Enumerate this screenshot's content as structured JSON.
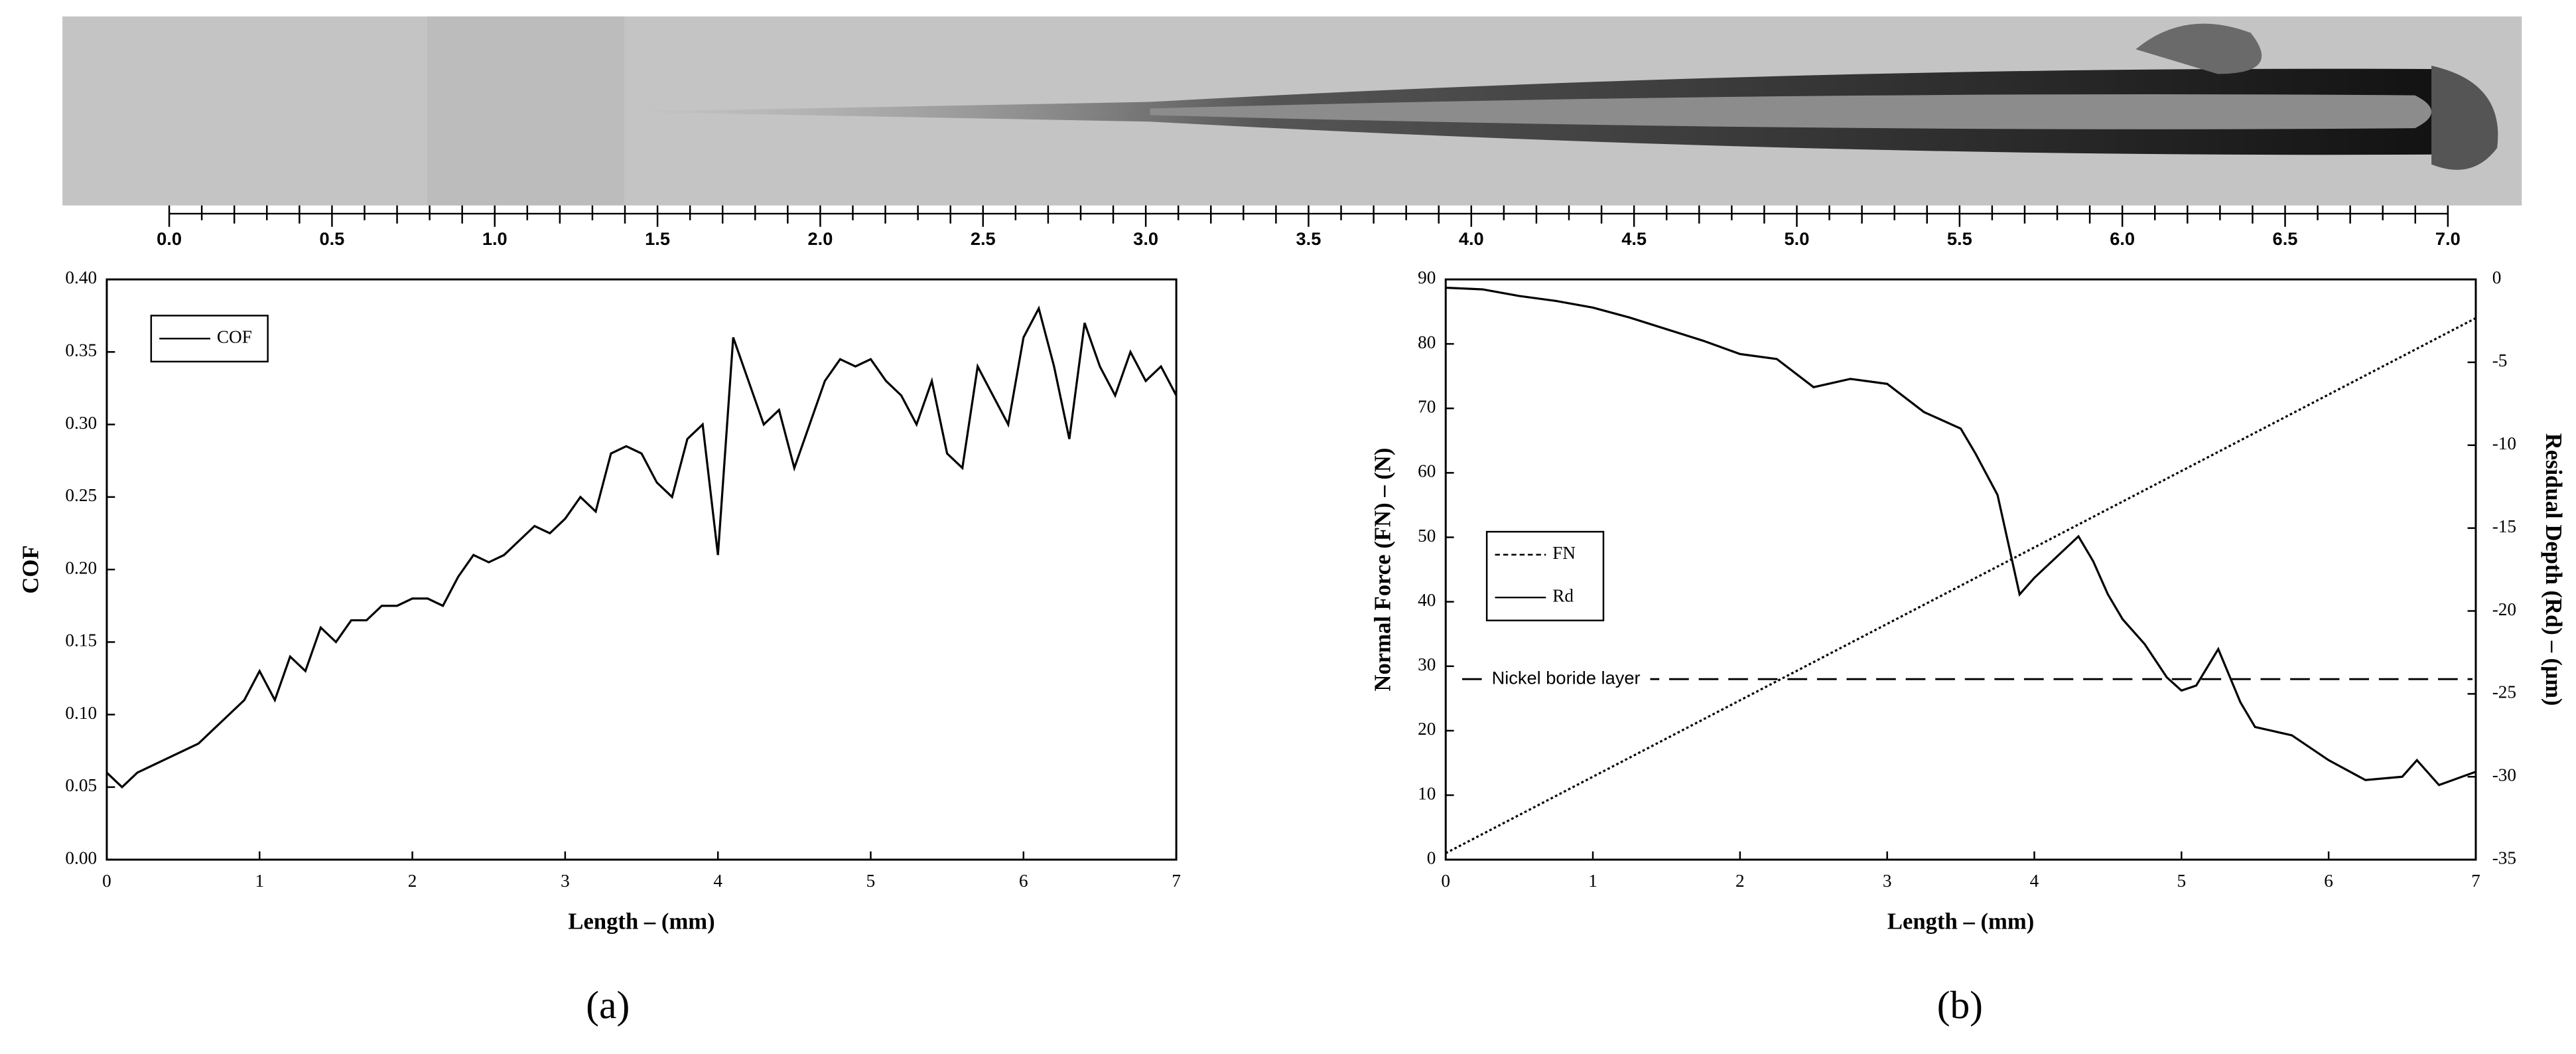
{
  "scale_bar": {
    "lim": [
      0,
      7
    ],
    "ticks": [
      {
        "value": 0,
        "label": "0.0"
      },
      {
        "value": 0.5,
        "label": "0.5"
      },
      {
        "value": 1,
        "label": "1.0"
      },
      {
        "value": 1.5,
        "label": "1.5"
      },
      {
        "value": 2,
        "label": "2.0"
      },
      {
        "value": 2.5,
        "label": "2.5"
      },
      {
        "value": 3,
        "label": "3.0"
      },
      {
        "value": 3.5,
        "label": "3.5"
      },
      {
        "value": 4,
        "label": "4.0"
      },
      {
        "value": 4.5,
        "label": "4.5"
      },
      {
        "value": 5,
        "label": "5.0"
      },
      {
        "value": 5.5,
        "label": "5.5"
      },
      {
        "value": 6,
        "label": "6.0"
      },
      {
        "value": 6.5,
        "label": "6.5"
      },
      {
        "value": 7,
        "label": "7.0"
      }
    ]
  },
  "chart_data": [
    {
      "type": "line",
      "panel_label": "(a)",
      "xlabel": "Length – (mm)",
      "ylabel": "COF",
      "label_color": "#000000",
      "legend": "upper left",
      "x": [
        0,
        0.1,
        0.2,
        0.3,
        0.4,
        0.5,
        0.6,
        0.7,
        0.8,
        0.9,
        1,
        1.1,
        1.2,
        1.3,
        1.4,
        1.5,
        1.6,
        1.7,
        1.8,
        1.9,
        2,
        2.1,
        2.2,
        2.3,
        2.4,
        2.5,
        2.6,
        2.7,
        2.8,
        2.9,
        3,
        3.1,
        3.2,
        3.3,
        3.4,
        3.5,
        3.6,
        3.7,
        3.8,
        3.9,
        4,
        4.1,
        4.2,
        4.3,
        4.4,
        4.5,
        4.6,
        4.7,
        4.8,
        4.9,
        5,
        5.1,
        5.2,
        5.3,
        5.4,
        5.5,
        5.6,
        5.7,
        5.8,
        5.9,
        6,
        6.1,
        6.2,
        6.3,
        6.4,
        6.5,
        6.6,
        6.7,
        6.8,
        6.9,
        7
      ],
      "series": [
        {
          "name": "COF",
          "color": "#000000",
          "values": [
            0.06,
            0.05,
            0.06,
            0.065,
            0.07,
            0.075,
            0.08,
            0.09,
            0.1,
            0.11,
            0.13,
            0.11,
            0.14,
            0.13,
            0.16,
            0.15,
            0.165,
            0.165,
            0.175,
            0.175,
            0.18,
            0.18,
            0.175,
            0.195,
            0.21,
            0.205,
            0.21,
            0.22,
            0.23,
            0.225,
            0.235,
            0.25,
            0.24,
            0.28,
            0.285,
            0.28,
            0.26,
            0.25,
            0.29,
            0.3,
            0.21,
            0.36,
            0.33,
            0.3,
            0.31,
            0.27,
            0.3,
            0.33,
            0.345,
            0.34,
            0.345,
            0.33,
            0.32,
            0.3,
            0.33,
            0.28,
            0.27,
            0.34,
            0.32,
            0.3,
            0.36,
            0.38,
            0.34,
            0.29,
            0.37,
            0.34,
            0.32,
            0.35,
            0.33,
            0.34,
            0.32
          ]
        }
      ],
      "xlim": [
        0,
        7
      ],
      "xticks": [
        0,
        1,
        2,
        3,
        4,
        5,
        6,
        7
      ],
      "ylim": [
        0,
        0.4
      ],
      "yticks": [
        {
          "value": 0,
          "label": "0.00"
        },
        {
          "value": 0.05,
          "label": "0.05"
        },
        {
          "value": 0.1,
          "label": "0.10"
        },
        {
          "value": 0.15,
          "label": "0.15"
        },
        {
          "value": 0.2,
          "label": "0.20"
        },
        {
          "value": 0.25,
          "label": "0.25"
        },
        {
          "value": 0.3,
          "label": "0.30"
        },
        {
          "value": 0.35,
          "label": "0.35"
        },
        {
          "value": 0.4,
          "label": "0.40"
        }
      ]
    },
    {
      "type": "line",
      "panel_label": "(b)",
      "xlabel": "Length – (mm)",
      "ylabel": "Normal Force (FN) – (N)",
      "y2label": "Residual Depth (Rd) – (µm)",
      "label_color": "#808080",
      "legend": "center left",
      "series": [
        {
          "name": "FN",
          "color": "#000000",
          "linestyle": "dashed",
          "x": [
            0,
            7
          ],
          "values": [
            1,
            84
          ]
        },
        {
          "name": "Rd",
          "color": "#000000",
          "axis": "y2",
          "x": [
            0,
            0.25,
            0.5,
            0.75,
            1,
            1.25,
            1.5,
            1.75,
            2,
            2.25,
            2.5,
            2.75,
            3,
            3.25,
            3.5,
            3.6,
            3.75,
            3.9,
            4,
            4.3,
            4.4,
            4.5,
            4.6,
            4.75,
            4.9,
            5,
            5.1,
            5.25,
            5.4,
            5.5,
            5.75,
            6,
            6.25,
            6.5,
            6.6,
            6.75,
            7
          ],
          "values": [
            -0.5,
            -0.6,
            -1,
            -1.3,
            -1.7,
            -2.3,
            -3,
            -3.7,
            -4.5,
            -4.8,
            -6.5,
            -6,
            -6.3,
            -8,
            -9,
            -10.5,
            -13,
            -19,
            -18,
            -15.5,
            -17,
            -19,
            -20.5,
            -22,
            -24,
            -24.8,
            -24.5,
            -22.3,
            -25.5,
            -27,
            -27.5,
            -29,
            -30.2,
            -30,
            -29,
            -30.5,
            -29.7
          ]
        }
      ],
      "annotation": {
        "text": "Nickel boride layer",
        "y": 28
      },
      "xlim": [
        0,
        7
      ],
      "xticks": [
        0,
        1,
        2,
        3,
        4,
        5,
        6,
        7
      ],
      "ylim": [
        0,
        90
      ],
      "yticks": [
        0,
        10,
        20,
        30,
        40,
        50,
        60,
        70,
        80,
        90
      ],
      "y2lim": [
        -35,
        0
      ],
      "y2ticks": [
        0,
        -5,
        -10,
        -15,
        -20,
        -25,
        -30,
        -35
      ]
    }
  ]
}
